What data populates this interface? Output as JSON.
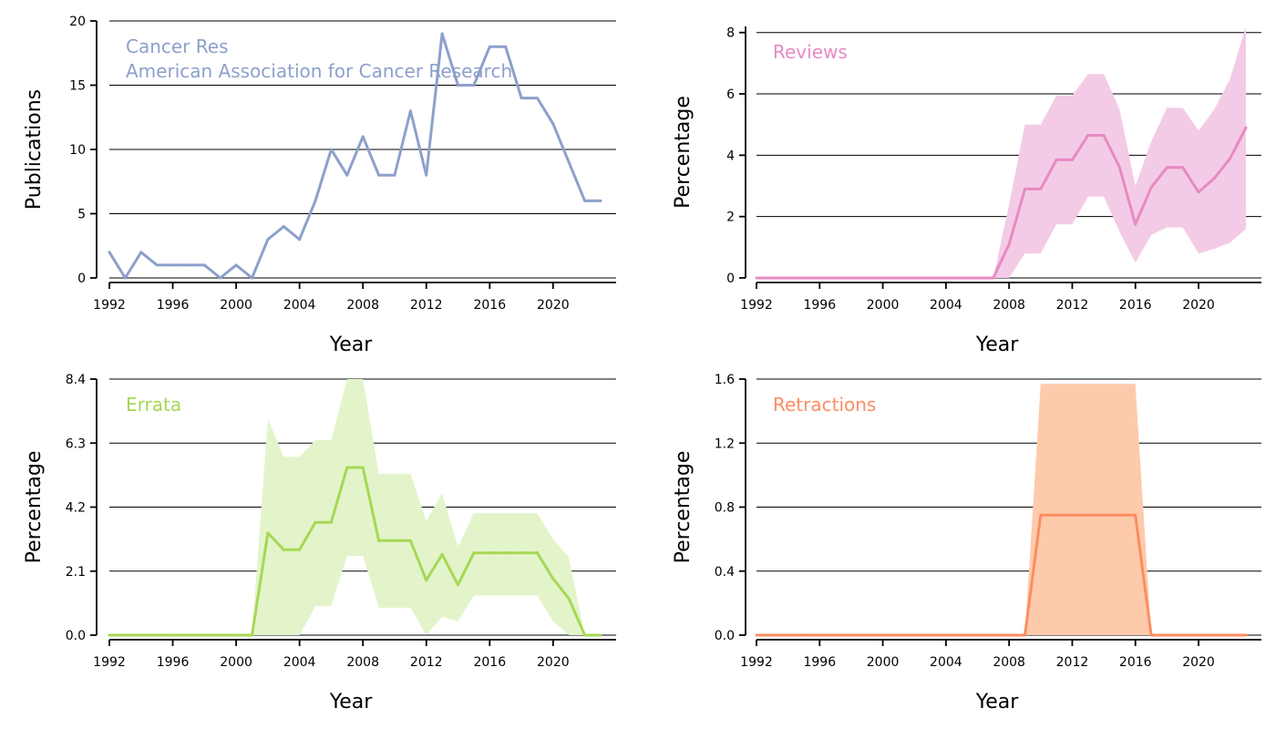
{
  "chart_data": [
    {
      "type": "line",
      "color": "#8da0cb",
      "labels": [
        "Cancer Res",
        "American Association for Cancer Research"
      ],
      "xlabel": "Year",
      "ylabel": "Publications",
      "xlim": [
        1992,
        2024
      ],
      "ylim": [
        0,
        20
      ],
      "xticks": [
        "1992",
        "1996",
        "2000",
        "2004",
        "2008",
        "2012",
        "2016",
        "2020"
      ],
      "yticks": [
        "0",
        "5",
        "10",
        "15",
        "20"
      ],
      "grid": "horizontal",
      "x": [
        1992,
        1993,
        1994,
        1995,
        1996,
        1997,
        1998,
        1999,
        2000,
        2001,
        2002,
        2003,
        2004,
        2005,
        2006,
        2007,
        2008,
        2009,
        2010,
        2011,
        2012,
        2013,
        2014,
        2015,
        2016,
        2017,
        2018,
        2019,
        2020,
        2021,
        2022,
        2023
      ],
      "values": [
        2,
        0,
        2,
        1,
        1,
        1,
        1,
        0,
        1,
        0,
        3,
        4,
        3,
        6,
        10,
        8,
        11,
        8,
        8,
        13,
        8,
        19,
        15,
        15,
        18,
        18,
        14,
        14,
        12,
        9,
        6,
        6
      ]
    },
    {
      "type": "area",
      "color": "#e78ac3",
      "band_color": "#f4cbe6",
      "labels": [
        "Reviews"
      ],
      "xlabel": "Year",
      "ylabel": "Percentage",
      "xlim": [
        1992,
        2024
      ],
      "ylim": [
        0,
        8.2
      ],
      "xticks": [
        "1992",
        "1996",
        "2000",
        "2004",
        "2008",
        "2012",
        "2016",
        "2020"
      ],
      "yticks": [
        "0",
        "2",
        "4",
        "6",
        "8"
      ],
      "grid": "horizontal",
      "x": [
        1992,
        1993,
        1994,
        1995,
        1996,
        1997,
        1998,
        1999,
        2000,
        2001,
        2002,
        2003,
        2004,
        2005,
        2006,
        2007,
        2008,
        2009,
        2010,
        2011,
        2012,
        2013,
        2014,
        2015,
        2016,
        2017,
        2018,
        2019,
        2020,
        2021,
        2022,
        2023
      ],
      "values": [
        0,
        0,
        0,
        0,
        0,
        0,
        0,
        0,
        0,
        0,
        0,
        0,
        0,
        0,
        0,
        0,
        1.1,
        2.9,
        2.9,
        3.85,
        3.85,
        4.65,
        4.65,
        3.6,
        1.75,
        2.95,
        3.6,
        3.6,
        2.8,
        3.25,
        3.9,
        4.9
      ],
      "upper": [
        0,
        0,
        0,
        0,
        0,
        0,
        0,
        0,
        0,
        0,
        0,
        0,
        0,
        0,
        0,
        0,
        2.4,
        5.0,
        5.0,
        5.95,
        5.95,
        6.65,
        6.65,
        5.5,
        3.0,
        4.45,
        5.55,
        5.55,
        4.8,
        5.5,
        6.5,
        8.2
      ],
      "lower": [
        0,
        0,
        0,
        0,
        0,
        0,
        0,
        0,
        0,
        0,
        0,
        0,
        0,
        0,
        0,
        0,
        0,
        0.8,
        0.8,
        1.75,
        1.75,
        2.65,
        2.65,
        1.5,
        0.5,
        1.4,
        1.65,
        1.65,
        0.8,
        0.95,
        1.15,
        1.6
      ]
    },
    {
      "type": "area",
      "color": "#a6d854",
      "band_color": "#e3f4cb",
      "labels": [
        "Errata"
      ],
      "xlabel": "Year",
      "ylabel": "Percentage",
      "xlim": [
        1992,
        2024
      ],
      "ylim": [
        0,
        8.4
      ],
      "xticks": [
        "1992",
        "1996",
        "2000",
        "2004",
        "2008",
        "2012",
        "2016",
        "2020"
      ],
      "yticks": [
        "0.0",
        "2.1",
        "4.2",
        "6.3",
        "8.4"
      ],
      "grid": "horizontal",
      "x": [
        1992,
        1993,
        1994,
        1995,
        1996,
        1997,
        1998,
        1999,
        2000,
        2001,
        2002,
        2003,
        2004,
        2005,
        2006,
        2007,
        2008,
        2009,
        2010,
        2011,
        2012,
        2013,
        2014,
        2015,
        2016,
        2017,
        2018,
        2019,
        2020,
        2021,
        2022,
        2023
      ],
      "values": [
        0,
        0,
        0,
        0,
        0,
        0,
        0,
        0,
        0,
        0,
        3.35,
        2.8,
        2.8,
        3.7,
        3.7,
        5.5,
        5.5,
        3.1,
        3.1,
        3.1,
        1.8,
        2.65,
        1.65,
        2.7,
        2.7,
        2.7,
        2.7,
        2.7,
        1.85,
        1.2,
        0,
        0
      ],
      "upper": [
        0,
        0,
        0,
        0,
        0,
        0,
        0,
        0,
        0,
        0,
        7.1,
        5.85,
        5.85,
        6.4,
        6.4,
        8.4,
        8.4,
        5.3,
        5.3,
        5.3,
        3.75,
        4.65,
        2.9,
        4.0,
        4.0,
        4.0,
        4.0,
        4.0,
        3.15,
        2.55,
        0,
        0
      ],
      "lower": [
        0,
        0,
        0,
        0,
        0,
        0,
        0,
        0,
        0,
        0,
        0,
        0,
        0,
        0.95,
        0.95,
        2.6,
        2.6,
        0.9,
        0.9,
        0.9,
        0,
        0.6,
        0.45,
        1.3,
        1.3,
        1.3,
        1.3,
        1.3,
        0.45,
        0,
        0,
        0
      ]
    },
    {
      "type": "area",
      "color": "#fc8d62",
      "band_color": "#fdcbab",
      "labels": [
        "Retractions"
      ],
      "xlabel": "Year",
      "ylabel": "Percentage",
      "xlim": [
        1992,
        2024
      ],
      "ylim": [
        0,
        1.6
      ],
      "xticks": [
        "1992",
        "1996",
        "2000",
        "2004",
        "2008",
        "2012",
        "2016",
        "2020"
      ],
      "yticks": [
        "0.0",
        "0.4",
        "0.8",
        "1.2",
        "1.6"
      ],
      "grid": "horizontal",
      "x": [
        1992,
        1993,
        1994,
        1995,
        1996,
        1997,
        1998,
        1999,
        2000,
        2001,
        2002,
        2003,
        2004,
        2005,
        2006,
        2007,
        2008,
        2009,
        2010,
        2011,
        2012,
        2013,
        2014,
        2015,
        2016,
        2017,
        2018,
        2019,
        2020,
        2021,
        2022,
        2023
      ],
      "values": [
        0,
        0,
        0,
        0,
        0,
        0,
        0,
        0,
        0,
        0,
        0,
        0,
        0,
        0,
        0,
        0,
        0,
        0,
        0.75,
        0.75,
        0.75,
        0.75,
        0.75,
        0.75,
        0.75,
        0,
        0,
        0,
        0,
        0,
        0,
        0
      ],
      "upper": [
        0,
        0,
        0,
        0,
        0,
        0,
        0,
        0,
        0,
        0,
        0,
        0,
        0,
        0,
        0,
        0,
        0,
        0,
        1.57,
        1.57,
        1.57,
        1.57,
        1.57,
        1.57,
        1.57,
        0,
        0,
        0,
        0,
        0,
        0,
        0
      ],
      "lower": [
        0,
        0,
        0,
        0,
        0,
        0,
        0,
        0,
        0,
        0,
        0,
        0,
        0,
        0,
        0,
        0,
        0,
        0,
        0,
        0,
        0,
        0,
        0,
        0,
        0,
        0,
        0,
        0,
        0,
        0,
        0,
        0
      ]
    }
  ]
}
